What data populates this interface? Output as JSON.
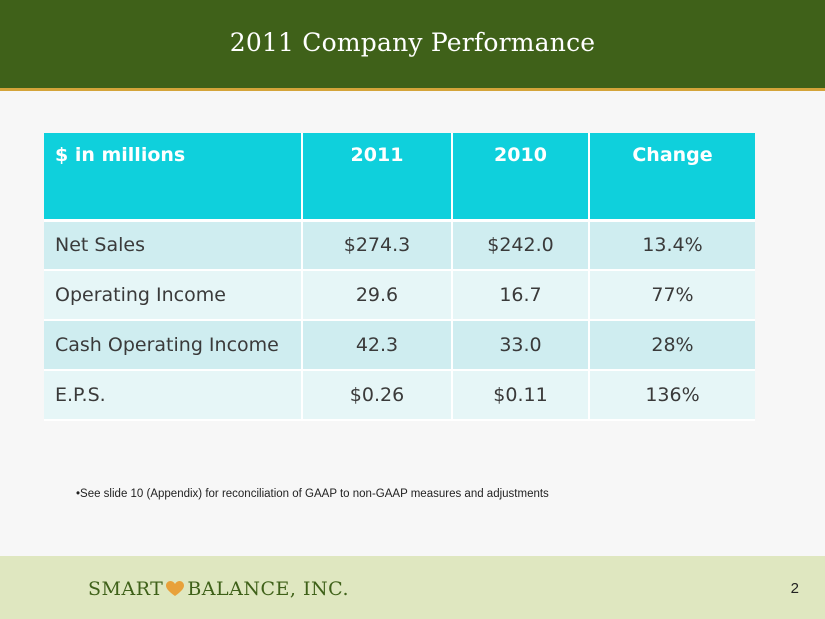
{
  "slide": {
    "title": "2011 Company Performance",
    "page_number": "2",
    "footnote": "•See slide 10 (Appendix) for reconciliation of GAAP to non-GAAP measures and adjustments"
  },
  "table": {
    "headers": [
      "$ in millions",
      "2011",
      "2010",
      "Change"
    ],
    "rows": [
      [
        "Net Sales",
        "$274.3",
        "$242.0",
        "13.4%"
      ],
      [
        "Operating Income",
        "29.6",
        "16.7",
        "77%"
      ],
      [
        "Cash Operating Income",
        "42.3",
        "33.0",
        "28%"
      ],
      [
        "E.P.S.",
        "$0.26",
        "$0.11",
        "136%"
      ]
    ]
  },
  "logo": {
    "left": "SMART",
    "right": "BALANCE, INC.",
    "icon": "heart-icon"
  },
  "colors": {
    "header_green": "#3f6119",
    "accent_gold": "#d4a43a",
    "table_header_cyan": "#0fd0dc",
    "footer_bg": "#dfe7c0"
  }
}
